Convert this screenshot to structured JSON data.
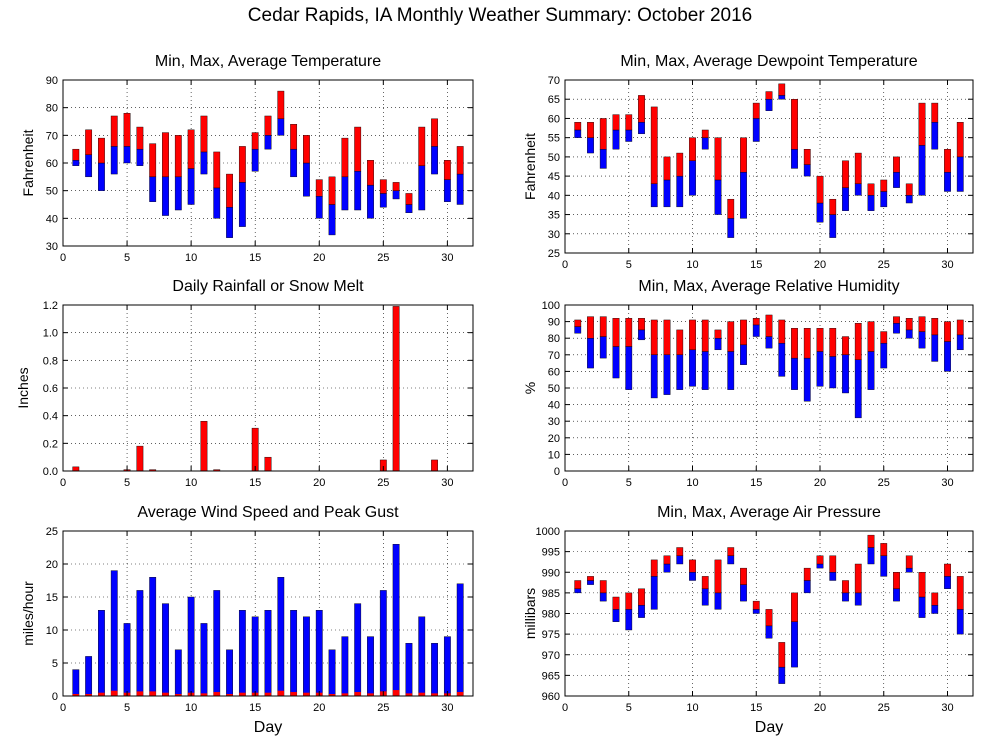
{
  "page": {
    "title": "Cedar Rapids, IA Monthly Weather Summary: October 2016"
  },
  "colors": {
    "upper": "#ff0000",
    "lower": "#0000ff",
    "grid": "#000000"
  },
  "chart_data": [
    {
      "id": "temperature",
      "type": "bar",
      "title": "Min, Max, Average Temperature",
      "xlabel": "",
      "ylabel": "Fahrenheit",
      "xlim": [
        0,
        32
      ],
      "ylim": [
        30,
        90
      ],
      "xticks": [
        0,
        5,
        10,
        15,
        20,
        25,
        30
      ],
      "yticks": [
        30,
        40,
        50,
        60,
        70,
        80,
        90
      ],
      "grid": true,
      "days": [
        1,
        2,
        3,
        4,
        5,
        6,
        7,
        8,
        9,
        10,
        11,
        12,
        13,
        14,
        15,
        16,
        17,
        18,
        19,
        20,
        21,
        22,
        23,
        24,
        25,
        26,
        27,
        28,
        29,
        30,
        31
      ],
      "min": [
        59,
        55,
        50,
        56,
        60,
        59,
        46,
        41,
        43,
        45,
        56,
        40,
        33,
        37,
        57,
        65,
        70,
        55,
        48,
        40,
        34,
        43,
        43,
        40,
        44,
        47,
        42,
        43,
        56,
        46,
        45
      ],
      "avg": [
        61,
        63,
        60,
        66,
        66,
        65,
        55,
        55,
        55,
        58,
        64,
        51,
        44,
        53,
        65,
        70,
        76,
        65,
        60,
        48,
        45,
        55,
        57,
        52,
        49,
        50,
        45,
        59,
        66,
        54,
        56
      ],
      "max": [
        65,
        72,
        69,
        77,
        78,
        73,
        67,
        71,
        70,
        72,
        77,
        64,
        56,
        66,
        71,
        77,
        86,
        74,
        70,
        54,
        55,
        69,
        73,
        61,
        54,
        53,
        49,
        73,
        76,
        61,
        66
      ]
    },
    {
      "id": "dewpoint",
      "type": "bar",
      "title": "Min, Max, Average Dewpoint Temperature",
      "xlabel": "",
      "ylabel": "Fahrenheit",
      "xlim": [
        0,
        32
      ],
      "ylim": [
        25,
        70
      ],
      "xticks": [
        0,
        5,
        10,
        15,
        20,
        25,
        30
      ],
      "yticks": [
        25,
        30,
        35,
        40,
        45,
        50,
        55,
        60,
        65,
        70
      ],
      "grid": true,
      "days": [
        1,
        2,
        3,
        4,
        5,
        6,
        7,
        8,
        9,
        10,
        11,
        12,
        13,
        14,
        15,
        16,
        17,
        18,
        19,
        20,
        21,
        22,
        23,
        24,
        25,
        26,
        27,
        28,
        29,
        30,
        31
      ],
      "min": [
        55,
        51,
        47,
        52,
        54,
        56,
        37,
        37,
        37,
        40,
        52,
        35,
        29,
        34,
        54,
        62,
        65,
        47,
        45,
        33,
        29,
        36,
        40,
        36,
        37,
        42,
        38,
        40,
        52,
        41,
        41
      ],
      "avg": [
        57,
        55,
        52,
        57,
        57,
        59,
        43,
        44,
        45,
        49,
        55,
        44,
        34,
        46,
        60,
        65,
        66,
        52,
        48,
        38,
        35,
        42,
        43,
        40,
        41,
        46,
        40,
        53,
        59,
        46,
        50
      ],
      "max": [
        59,
        59,
        60,
        61,
        61,
        66,
        63,
        50,
        51,
        55,
        57,
        55,
        39,
        55,
        64,
        67,
        69,
        65,
        52,
        45,
        39,
        49,
        51,
        43,
        44,
        50,
        43,
        64,
        64,
        52,
        59
      ]
    },
    {
      "id": "rainfall",
      "type": "bar",
      "title": "Daily Rainfall or Snow Melt",
      "xlabel": "",
      "ylabel": "Inches",
      "xlim": [
        0,
        32
      ],
      "ylim": [
        0,
        1.2
      ],
      "xticks": [
        0,
        5,
        10,
        15,
        20,
        25,
        30
      ],
      "yticks": [
        0,
        0.2,
        0.4,
        0.6,
        0.8,
        1,
        1.2
      ],
      "ytick_labels": [
        "0.0",
        "0.2",
        "0.4",
        "0.6",
        "0.8",
        "1.0",
        "1.2"
      ],
      "grid": true,
      "days": [
        1,
        2,
        3,
        4,
        5,
        6,
        7,
        8,
        9,
        10,
        11,
        12,
        13,
        14,
        15,
        16,
        17,
        18,
        19,
        20,
        21,
        22,
        23,
        24,
        25,
        26,
        27,
        28,
        29,
        30,
        31
      ],
      "values": [
        0.03,
        0,
        0,
        0,
        0.01,
        0.18,
        0.01,
        0,
        0,
        0,
        0.36,
        0.01,
        0,
        0,
        0.31,
        0.1,
        0,
        0,
        0,
        0,
        0,
        0,
        0,
        0,
        0.08,
        1.19,
        0,
        0,
        0.08,
        0,
        0
      ]
    },
    {
      "id": "humidity",
      "type": "bar",
      "title": "Min, Max, Average Relative Humidity",
      "xlabel": "",
      "ylabel": "%",
      "xlim": [
        0,
        32
      ],
      "ylim": [
        0,
        100
      ],
      "xticks": [
        0,
        5,
        10,
        15,
        20,
        25,
        30
      ],
      "yticks": [
        0,
        10,
        20,
        30,
        40,
        50,
        60,
        70,
        80,
        90,
        100
      ],
      "grid": true,
      "days": [
        1,
        2,
        3,
        4,
        5,
        6,
        7,
        8,
        9,
        10,
        11,
        12,
        13,
        14,
        15,
        16,
        17,
        18,
        19,
        20,
        21,
        22,
        23,
        24,
        25,
        26,
        27,
        28,
        29,
        30,
        31
      ],
      "min": [
        83,
        62,
        68,
        56,
        49,
        79,
        44,
        46,
        49,
        51,
        49,
        73,
        49,
        64,
        81,
        74,
        57,
        49,
        42,
        51,
        50,
        47,
        32,
        49,
        62,
        83,
        80,
        74,
        66,
        60,
        73
      ],
      "avg": [
        87,
        80,
        81,
        75,
        75,
        85,
        70,
        70,
        70,
        73,
        72,
        80,
        72,
        76,
        88,
        81,
        77,
        68,
        68,
        72,
        69,
        70,
        67,
        72,
        77,
        89,
        85,
        84,
        82,
        78,
        82
      ],
      "max": [
        91,
        93,
        93,
        92,
        92,
        92,
        91,
        91,
        85,
        91,
        91,
        85,
        90,
        91,
        92,
        94,
        91,
        86,
        86,
        86,
        86,
        81,
        89,
        90,
        84,
        93,
        92,
        93,
        92,
        90,
        91
      ]
    },
    {
      "id": "wind",
      "type": "bar",
      "title": "Average Wind Speed and Peak Gust",
      "xlabel": "Day",
      "ylabel": "miles/hour",
      "xlim": [
        0,
        32
      ],
      "ylim": [
        0,
        25
      ],
      "xticks": [
        0,
        5,
        10,
        15,
        20,
        25,
        30
      ],
      "yticks": [
        0,
        5,
        10,
        15,
        20,
        25
      ],
      "grid": true,
      "days": [
        1,
        2,
        3,
        4,
        5,
        6,
        7,
        8,
        9,
        10,
        11,
        12,
        13,
        14,
        15,
        16,
        17,
        18,
        19,
        20,
        21,
        22,
        23,
        24,
        25,
        26,
        27,
        28,
        29,
        30,
        31
      ],
      "gust": [
        4,
        6,
        13,
        19,
        11,
        16,
        18,
        14,
        7,
        15,
        11,
        16,
        7,
        13,
        12,
        13,
        18,
        13,
        12,
        13,
        7,
        9,
        14,
        9,
        16,
        23,
        8,
        12,
        8,
        9,
        17
      ],
      "avg": [
        0.3,
        0.3,
        0.5,
        0.8,
        0.5,
        0.7,
        0.7,
        0.5,
        0.3,
        0.5,
        0.4,
        0.6,
        0.3,
        0.5,
        0.5,
        0.5,
        0.8,
        0.6,
        0.5,
        0.5,
        0.3,
        0.4,
        0.6,
        0.4,
        0.7,
        0.9,
        0.4,
        0.5,
        0.4,
        0.4,
        0.6
      ]
    },
    {
      "id": "pressure",
      "type": "bar",
      "title": "Min, Max, Average Air Pressure",
      "xlabel": "Day",
      "ylabel": "millibars",
      "xlim": [
        0,
        32
      ],
      "ylim": [
        960,
        1000
      ],
      "xticks": [
        0,
        5,
        10,
        15,
        20,
        25,
        30
      ],
      "yticks": [
        960,
        965,
        970,
        975,
        980,
        985,
        990,
        995,
        1000
      ],
      "grid": true,
      "days": [
        1,
        2,
        3,
        4,
        5,
        6,
        7,
        8,
        9,
        10,
        11,
        12,
        13,
        14,
        15,
        16,
        17,
        18,
        19,
        20,
        21,
        22,
        23,
        24,
        25,
        26,
        27,
        28,
        29,
        30,
        31
      ],
      "min": [
        985,
        987,
        983,
        978,
        976,
        979,
        981,
        990,
        992,
        988,
        982,
        981,
        992,
        983,
        980,
        974,
        963,
        967,
        985,
        991,
        988,
        983,
        982,
        992,
        989,
        983,
        990,
        979,
        980,
        986,
        975
      ],
      "avg": [
        986,
        988,
        985,
        981,
        981,
        982,
        989,
        992,
        994,
        990,
        986,
        985,
        994,
        987,
        981,
        977,
        967,
        978,
        988,
        992,
        990,
        985,
        985,
        996,
        994,
        986,
        991,
        984,
        982,
        989,
        981
      ],
      "max": [
        988,
        989,
        988,
        984,
        985,
        986,
        993,
        994,
        996,
        993,
        989,
        993,
        996,
        991,
        983,
        981,
        973,
        985,
        991,
        994,
        994,
        988,
        992,
        999,
        997,
        990,
        994,
        990,
        985,
        992,
        989
      ]
    }
  ]
}
